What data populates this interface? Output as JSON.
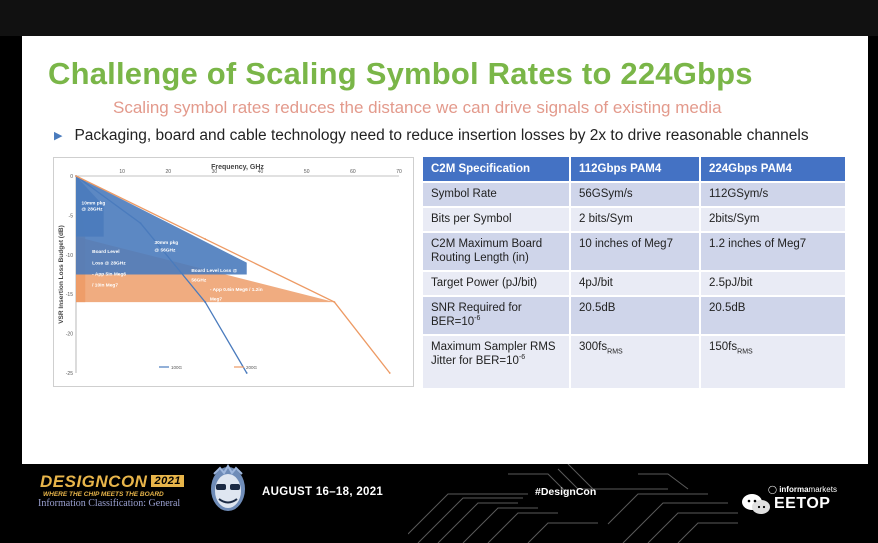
{
  "slide": {
    "title": "Challenge of Scaling Symbol Rates to 224Gbps",
    "subtitle": "Scaling symbol rates reduces the distance we can drive signals of existing media",
    "bullet": "Packaging, board and cable technology need to reduce insertion losses by 2x to drive reasonable channels"
  },
  "chart_data": {
    "type": "line",
    "title": "Frequency, GHz",
    "xlabel": "",
    "ylabel": "VSR Insertion Loss Budget (dB)",
    "x_ticks": [
      "0",
      "10",
      "20",
      "30",
      "40",
      "50",
      "60",
      "70"
    ],
    "y_ticks": [
      "0",
      "-5",
      "-10",
      "-15",
      "-20",
      "-25"
    ],
    "xlim": [
      0,
      70
    ],
    "ylim": [
      -25,
      0
    ],
    "grid": false,
    "legend": "bottom",
    "series": [
      {
        "name": "100G",
        "color": "#4a7bbd",
        "x": [
          0,
          14,
          28,
          37
        ],
        "y": [
          0,
          -6,
          -16,
          -25
        ]
      },
      {
        "name": "200G",
        "color": "#ed9a64",
        "x": [
          0,
          28,
          56,
          68
        ],
        "y": [
          0,
          -8,
          -16,
          -25
        ]
      }
    ],
    "regions": [
      {
        "color": "#4a7bbd",
        "points": [
          [
            0,
            0
          ],
          [
            6,
            -3.8
          ],
          [
            6,
            -7.7
          ],
          [
            0,
            -7.7
          ]
        ]
      },
      {
        "color": "#4a7bbd",
        "points": [
          [
            0,
            0
          ],
          [
            37,
            -11
          ],
          [
            37,
            -12.5
          ],
          [
            0,
            -12.5
          ]
        ]
      },
      {
        "color": "#ed9a64",
        "points": [
          [
            0,
            0
          ],
          [
            2,
            -7.7
          ],
          [
            2,
            -16
          ],
          [
            0,
            -16
          ]
        ]
      },
      {
        "color": "#ed9a64",
        "points": [
          [
            0,
            -7.7
          ],
          [
            56,
            -16
          ],
          [
            0,
            -16
          ]
        ]
      }
    ],
    "annotations": [
      {
        "text": "10mm pkg",
        "x": 1.2,
        "y": -3.6,
        "color": "#fff"
      },
      {
        "text": "@ 28GHz",
        "x": 1.2,
        "y": -4.4,
        "color": "#fff"
      },
      {
        "text": "30mm pkg",
        "x": 17,
        "y": -8.6,
        "color": "#fff"
      },
      {
        "text": "@ 56GHz",
        "x": 17,
        "y": -9.6,
        "color": "#fff"
      },
      {
        "text": "Board Level",
        "x": 3.5,
        "y": -9.8,
        "color": "#fff"
      },
      {
        "text": "Loss @ 28GHz",
        "x": 3.5,
        "y": -11.2,
        "color": "#fff"
      },
      {
        "text": "- App 5in Meg6",
        "x": 3.5,
        "y": -12.6,
        "color": "#fff"
      },
      {
        "text": "/ 10in Meg7",
        "x": 3.5,
        "y": -14,
        "color": "#fff"
      },
      {
        "text": "Board Level Loss @",
        "x": 25,
        "y": -12.2,
        "color": "#fff"
      },
      {
        "text": "56GHz",
        "x": 25,
        "y": -13.4,
        "color": "#fff"
      },
      {
        "text": "- App 0.6in Meg6 / 1.2in",
        "x": 29,
        "y": -14.6,
        "color": "#fff"
      },
      {
        "text": "Meg7",
        "x": 29,
        "y": -15.8,
        "color": "#fff"
      }
    ]
  },
  "table": {
    "headers": [
      "C2M Specification",
      "112Gbps PAM4",
      "224Gbps PAM4"
    ],
    "rows": [
      {
        "spec": "Symbol Rate",
        "v112": "56GSym/s",
        "v224": "112GSym/s"
      },
      {
        "spec": "Bits per Symbol",
        "v112": "2 bits/Sym",
        "v224": "2bits/Sym"
      },
      {
        "spec": "C2M Maximum Board Routing Length (in)",
        "v112": "10 inches of Meg7",
        "v224": "1.2 inches of Meg7"
      },
      {
        "spec": "Target Power (pJ/bit)",
        "v112": "4pJ/bit",
        "v224": "2.5pJ/bit"
      },
      {
        "spec_main": "SNR Required for BER=10",
        "spec_sup": "-6",
        "v112": "20.5dB",
        "v224": "20.5dB"
      },
      {
        "spec_main": "Maximum Sampler RMS Jitter for BER=10",
        "spec_sup": "-6",
        "v112_main": "300fs",
        "v112_sub": "RMS",
        "v224_main": "150fs",
        "v224_sub": "RMS"
      }
    ]
  },
  "footer": {
    "logo": "DESIGNCON",
    "logo_year": "2021",
    "logo_tagline": "WHERE THE CHIP MEETS THE BOARD",
    "classification": "Information Classification: General",
    "dates": "AUGUST 16–18, 2021",
    "hashtag": "#DesignCon",
    "sponsor_prefix": "informa",
    "sponsor_suffix": "markets",
    "watermark": "EETOP"
  },
  "colors": {
    "title": "#7ab648",
    "subtitle": "#e39a8c",
    "table_header": "#4472c4",
    "series_100g": "#4a7bbd",
    "series_200g": "#ed9a64",
    "logo_gold": "#e8b54a"
  }
}
